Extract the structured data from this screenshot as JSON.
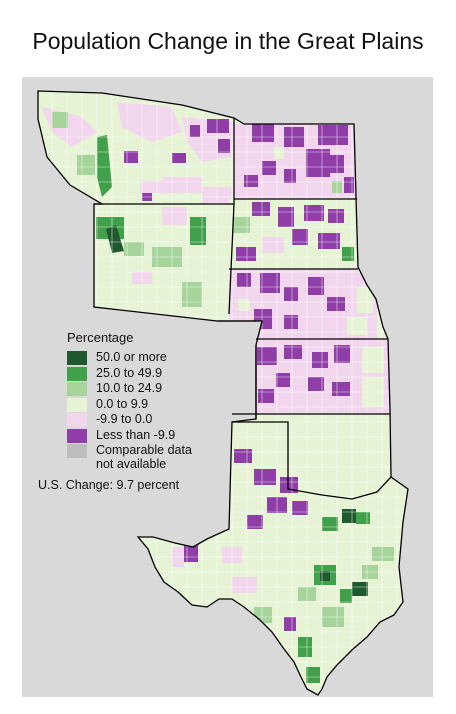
{
  "title": "Population Change in the Great Plains",
  "legend": {
    "title": "Percentage",
    "items": [
      {
        "label": "50.0 or more",
        "color": "#1e5a2e"
      },
      {
        "label": "25.0 to 49.9",
        "color": "#41a04a"
      },
      {
        "label": "10.0 to 24.9",
        "color": "#a7d49b"
      },
      {
        "label": "0.0 to 9.9",
        "color": "#e6f3d5"
      },
      {
        "label": "-9.9 to 0.0",
        "color": "#f2d6ee"
      },
      {
        "label": "Less than -9.9",
        "color": "#8e3ea6"
      },
      {
        "label": "Comparable data\nnot available",
        "color": "#bdbdbd"
      }
    ],
    "us_change": "U.S. Change: 9.7 percent"
  },
  "colors": {
    "background": "#d9d9d9",
    "border": "#000000",
    "county_line": "#ffffff"
  }
}
